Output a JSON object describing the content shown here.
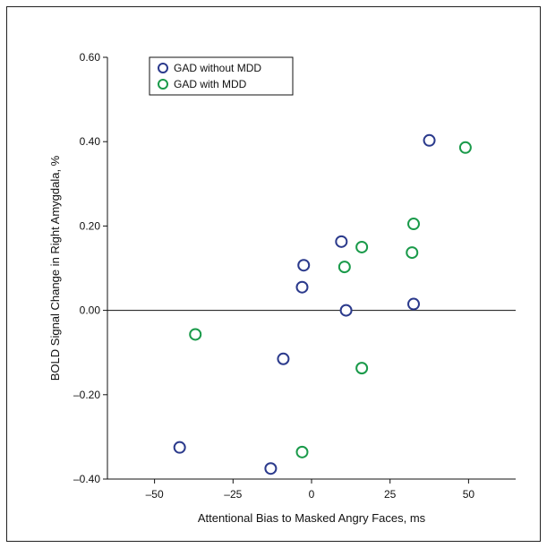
{
  "chart_data": {
    "type": "scatter",
    "title": "",
    "xlabel": "Attentional Bias to Masked Angry Faces, ms",
    "ylabel": "BOLD Signal Change in Right Amygdala, %",
    "xlim": [
      -65,
      65
    ],
    "ylim": [
      -0.4,
      0.6
    ],
    "xticks": [
      -50,
      -25,
      0,
      25,
      50
    ],
    "xtick_labels": [
      "–50",
      "–25",
      "0",
      "25",
      "50"
    ],
    "yticks": [
      -0.4,
      -0.2,
      0.0,
      0.2,
      0.4,
      0.6
    ],
    "ytick_labels": [
      "–0.40",
      "–0.20",
      "0.00",
      "0.20",
      "0.40",
      "0.60"
    ],
    "reference_line_y": 0.0,
    "grid": false,
    "legend_position": "top-left",
    "series": [
      {
        "name": "GAD without MDD",
        "color": "#2b3a8c",
        "points": [
          {
            "x": -42,
            "y": -0.325
          },
          {
            "x": -13,
            "y": -0.375
          },
          {
            "x": -9,
            "y": -0.115
          },
          {
            "x": -3,
            "y": 0.055
          },
          {
            "x": -2.5,
            "y": 0.107
          },
          {
            "x": 9.5,
            "y": 0.163
          },
          {
            "x": 11,
            "y": 0.0
          },
          {
            "x": 32.5,
            "y": 0.015
          },
          {
            "x": 37.5,
            "y": 0.403
          }
        ]
      },
      {
        "name": "GAD with MDD",
        "color": "#1a9a4a",
        "points": [
          {
            "x": -37,
            "y": -0.057
          },
          {
            "x": -3,
            "y": -0.336
          },
          {
            "x": 10.5,
            "y": 0.103
          },
          {
            "x": 16,
            "y": 0.15
          },
          {
            "x": 16,
            "y": -0.137
          },
          {
            "x": 32,
            "y": 0.137
          },
          {
            "x": 32.5,
            "y": 0.205
          },
          {
            "x": 49,
            "y": 0.386
          }
        ]
      }
    ]
  }
}
